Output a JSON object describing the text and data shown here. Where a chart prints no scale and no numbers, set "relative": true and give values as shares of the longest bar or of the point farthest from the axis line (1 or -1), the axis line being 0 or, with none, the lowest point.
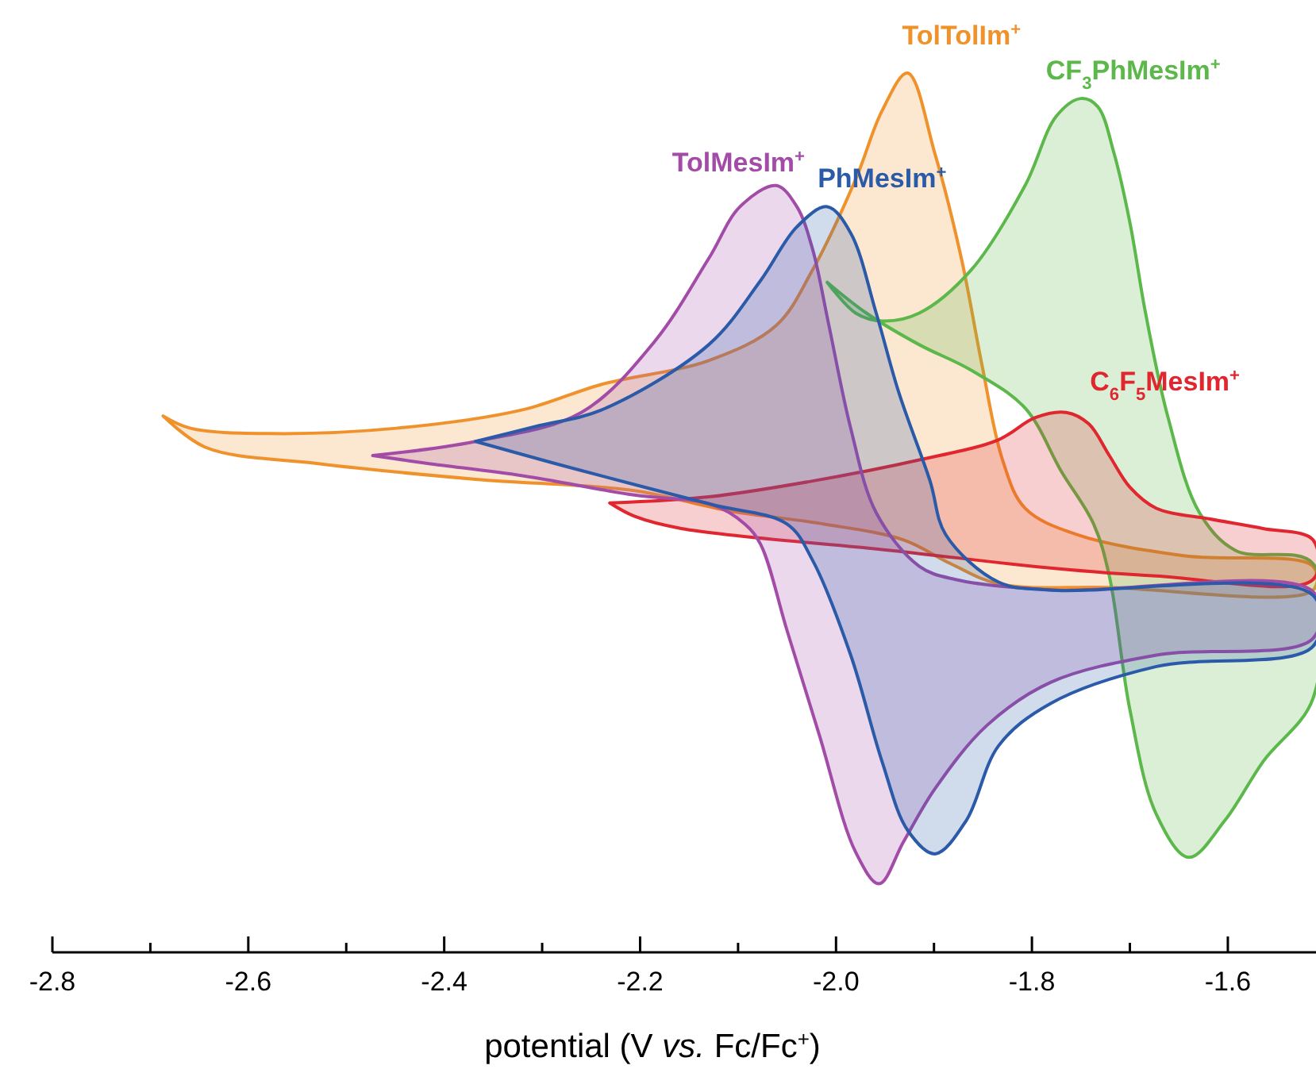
{
  "chart_data": {
    "type": "area",
    "relative": true,
    "xlabel": "potential (V $_{}$vs.$_{}$ Fc/Fc$^{+}$)",
    "xlim": [
      -2.8,
      -1.51
    ],
    "xticks": [
      {
        "value": -2.8,
        "label": "-2.8"
      },
      {
        "value": -2.7,
        "label": null
      },
      {
        "value": -2.6,
        "label": "-2.6"
      },
      {
        "value": -2.5,
        "label": null
      },
      {
        "value": -2.4,
        "label": "-2.4"
      },
      {
        "value": -2.3,
        "label": null
      },
      {
        "value": -2.2,
        "label": "-2.2"
      },
      {
        "value": -2.1,
        "label": null
      },
      {
        "value": -2.0,
        "label": "-2.0"
      },
      {
        "value": -1.9,
        "label": null
      },
      {
        "value": -1.8,
        "label": "-1.8"
      },
      {
        "value": -1.7,
        "label": null
      },
      {
        "value": -1.6,
        "label": "-1.6"
      }
    ],
    "series": [
      {
        "name": "TolTolIm$^{+}$",
        "color": "#f0922b",
        "x": [
          -2.687,
          -2.659,
          -2.578,
          -2.449,
          -2.32,
          -2.239,
          -2.13,
          -2.061,
          -2.024,
          -1.98,
          -1.953,
          -1.927,
          -1.899,
          -1.872,
          -1.851,
          -1.83,
          -1.807,
          -1.754,
          -1.645,
          -1.513,
          -1.513,
          -1.721,
          -1.834,
          -1.883,
          -1.931,
          -2.012,
          -2.109,
          -2.206,
          -2.368,
          -2.53,
          -2.643,
          -2.687
        ],
        "values": [
          0.61,
          0.596,
          0.59,
          0.596,
          0.617,
          0.646,
          0.673,
          0.713,
          0.776,
          0.879,
          0.957,
          1.0,
          0.908,
          0.789,
          0.668,
          0.56,
          0.505,
          0.475,
          0.451,
          0.439,
          0.412,
          0.415,
          0.419,
          0.442,
          0.469,
          0.487,
          0.502,
          0.525,
          0.538,
          0.556,
          0.574,
          0.61
        ]
      },
      {
        "name": "CF$_{3}$PhMesIm$^{+}$",
        "color": "#5cb84a",
        "x": [
          -2.009,
          -1.98,
          -1.953,
          -1.915,
          -1.862,
          -1.807,
          -1.775,
          -1.75,
          -1.733,
          -1.716,
          -1.7,
          -1.684,
          -1.661,
          -1.629,
          -1.592,
          -1.513,
          -1.513,
          -1.564,
          -1.603,
          -1.64,
          -1.673,
          -1.7,
          -1.721,
          -1.737,
          -1.77,
          -1.807,
          -1.862,
          -1.915,
          -1.969,
          -2.009
        ],
        "values": [
          0.762,
          0.727,
          0.718,
          0.727,
          0.776,
          0.872,
          0.951,
          0.971,
          0.962,
          0.908,
          0.83,
          0.727,
          0.608,
          0.5,
          0.457,
          0.442,
          0.289,
          0.217,
          0.15,
          0.108,
          0.157,
          0.276,
          0.428,
          0.487,
          0.547,
          0.619,
          0.662,
          0.691,
          0.727,
          0.762
        ]
      },
      {
        "name": "C$_{6}$F$_{5}$MesIm$^{+}$",
        "color": "#e0262e",
        "x": [
          -2.231,
          -2.13,
          -2.024,
          -1.915,
          -1.834,
          -1.797,
          -1.765,
          -1.742,
          -1.721,
          -1.7,
          -1.673,
          -1.619,
          -1.564,
          -1.513,
          -1.513,
          -1.673,
          -1.781,
          -1.943,
          -2.158,
          -2.206,
          -2.231
        ],
        "values": [
          0.511,
          0.518,
          0.536,
          0.56,
          0.583,
          0.608,
          0.614,
          0.601,
          0.565,
          0.529,
          0.505,
          0.493,
          0.482,
          0.469,
          0.424,
          0.428,
          0.437,
          0.457,
          0.482,
          0.496,
          0.511
        ]
      },
      {
        "name": "TolMesIm$^{+}$",
        "color": "#a24ca8",
        "x": [
          -2.473,
          -2.368,
          -2.26,
          -2.185,
          -2.13,
          -2.098,
          -2.061,
          -2.04,
          -2.024,
          -2.008,
          -1.985,
          -1.959,
          -1.915,
          -1.878,
          -1.781,
          -1.513,
          -1.513,
          -1.673,
          -1.781,
          -1.846,
          -1.899,
          -1.931,
          -1.956,
          -1.98,
          -2.017,
          -2.05,
          -2.077,
          -2.093,
          -2.126,
          -2.206,
          -2.32,
          -2.417,
          -2.473
        ],
        "values": [
          0.565,
          0.581,
          0.614,
          0.695,
          0.789,
          0.848,
          0.872,
          0.848,
          0.8,
          0.717,
          0.596,
          0.5,
          0.439,
          0.424,
          0.412,
          0.41,
          0.357,
          0.338,
          0.307,
          0.258,
          0.186,
          0.126,
          0.078,
          0.114,
          0.247,
          0.366,
          0.464,
          0.487,
          0.509,
          0.52,
          0.542,
          0.556,
          0.565
        ]
      },
      {
        "name": "PhMesIm$^{+}$",
        "color": "#2a5aa8",
        "x": [
          -2.368,
          -2.303,
          -2.239,
          -2.13,
          -2.077,
          -2.04,
          -2.009,
          -1.985,
          -1.959,
          -1.936,
          -1.904,
          -1.888,
          -1.834,
          -1.781,
          -1.513,
          -1.513,
          -1.673,
          -1.781,
          -1.834,
          -1.867,
          -1.899,
          -1.927,
          -1.953,
          -1.985,
          -2.024,
          -2.05,
          -2.126,
          -2.206,
          -2.287,
          -2.368
        ],
        "values": [
          0.581,
          0.599,
          0.617,
          0.691,
          0.764,
          0.825,
          0.848,
          0.818,
          0.727,
          0.637,
          0.536,
          0.475,
          0.421,
          0.412,
          0.406,
          0.348,
          0.325,
          0.283,
          0.235,
          0.15,
          0.112,
          0.139,
          0.217,
          0.338,
          0.446,
          0.487,
          0.509,
          0.532,
          0.556,
          0.581
        ]
      }
    ]
  }
}
